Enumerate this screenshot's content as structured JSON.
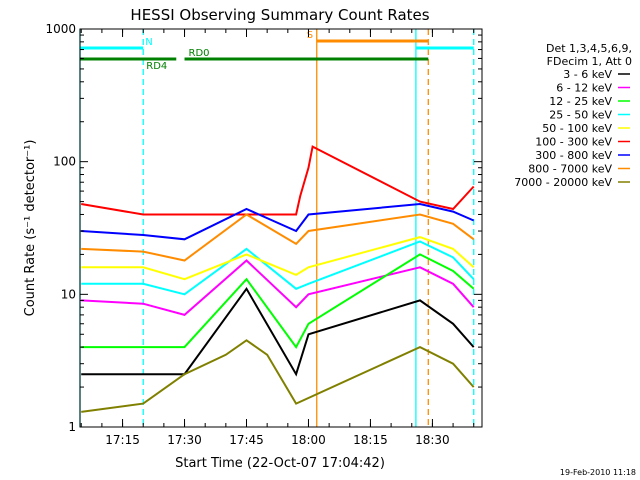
{
  "chart_data": {
    "type": "line",
    "title": "HESSI Observing Summary Count Rates",
    "xlabel": "Start Time (22-Oct-07 17:04:42)",
    "ylabel": "Count Rate (s⁻¹ detector⁻¹)",
    "yscale": "log",
    "xlim": [
      "17:04:42",
      "18:42:00"
    ],
    "ylim": [
      1,
      1000
    ],
    "x_ticks": [
      "17:15",
      "17:30",
      "17:45",
      "18:00",
      "18:15",
      "18:30"
    ],
    "y_ticks": [
      "1",
      "10",
      "100",
      "1000"
    ],
    "legend_header": [
      "Det 1,3,4,5,6,9,",
      "FDecim 1, Att 0"
    ],
    "legend_position": "right",
    "series": [
      {
        "name": "3 - 6 keV",
        "color": "#000000",
        "x": [
          "17:05",
          "17:20",
          "17:30",
          "17:45",
          "17:57",
          "18:00",
          "18:27",
          "18:35",
          "18:40"
        ],
        "values": [
          2.5,
          2.5,
          2.5,
          11,
          2.5,
          5,
          9,
          6,
          4
        ]
      },
      {
        "name": "6 - 12 keV",
        "color": "#ff00ff",
        "x": [
          "17:05",
          "17:20",
          "17:30",
          "17:45",
          "17:57",
          "18:00",
          "18:27",
          "18:35",
          "18:40"
        ],
        "values": [
          9,
          8.5,
          7,
          18,
          8,
          10,
          16,
          12,
          8
        ]
      },
      {
        "name": "12 - 25 keV",
        "color": "#00ff00",
        "x": [
          "17:05",
          "17:20",
          "17:30",
          "17:45",
          "17:57",
          "18:00",
          "18:27",
          "18:35",
          "18:40"
        ],
        "values": [
          4,
          4,
          4,
          13,
          4,
          6,
          20,
          15,
          11
        ]
      },
      {
        "name": "25 - 50 keV",
        "color": "#00ffff",
        "x": [
          "17:05",
          "17:20",
          "17:30",
          "17:45",
          "17:57",
          "18:00",
          "18:27",
          "18:35",
          "18:40"
        ],
        "values": [
          12,
          12,
          10,
          22,
          11,
          12,
          25,
          19,
          13
        ]
      },
      {
        "name": "50 - 100 keV",
        "color": "#ffff00",
        "x": [
          "17:05",
          "17:20",
          "17:30",
          "17:45",
          "17:57",
          "18:00",
          "18:27",
          "18:35",
          "18:40"
        ],
        "values": [
          16,
          16,
          13,
          20,
          14,
          16,
          27,
          22,
          16
        ]
      },
      {
        "name": "100 - 300 keV",
        "color": "#ff0000",
        "x": [
          "17:05",
          "17:20",
          "17:30",
          "17:45",
          "17:57",
          "17:58",
          "18:00",
          "18:01",
          "18:27",
          "18:35",
          "18:40"
        ],
        "values": [
          48,
          40,
          40,
          40,
          40,
          55,
          90,
          130,
          50,
          44,
          65
        ]
      },
      {
        "name": "300 - 800 keV",
        "color": "#0000ff",
        "x": [
          "17:05",
          "17:20",
          "17:30",
          "17:45",
          "17:57",
          "18:00",
          "18:27",
          "18:35",
          "18:40"
        ],
        "values": [
          30,
          28,
          26,
          44,
          30,
          40,
          48,
          42,
          36
        ]
      },
      {
        "name": "800 - 7000 keV",
        "color": "#ff8c00",
        "x": [
          "17:05",
          "17:20",
          "17:30",
          "17:45",
          "17:57",
          "18:00",
          "18:27",
          "18:35",
          "18:40"
        ],
        "values": [
          22,
          21,
          18,
          40,
          24,
          30,
          40,
          34,
          26
        ]
      },
      {
        "name": "7000 - 20000 keV",
        "color": "#808000",
        "x": [
          "17:05",
          "17:20",
          "17:30",
          "17:40",
          "17:45",
          "17:50",
          "17:57",
          "18:27",
          "18:35",
          "18:40"
        ],
        "values": [
          1.3,
          1.5,
          2.5,
          3.5,
          4.5,
          3.5,
          1.5,
          4,
          3,
          2
        ]
      }
    ],
    "annotations": [
      {
        "label": "N",
        "color": "#00ffff",
        "x_start": "17:04:42",
        "x_end": "17:20"
      },
      {
        "label": "",
        "color": "#00ffff",
        "x_start": "18:26",
        "x_end": "18:40"
      },
      {
        "label": "S",
        "color": "#ff8c00",
        "x_start": "18:02",
        "x_end": "18:29"
      },
      {
        "label": "RD4",
        "color": "#008000",
        "x_start": "17:04:42",
        "x_end": "17:28"
      },
      {
        "label": "RD0",
        "color": "#008000",
        "x_start": "17:30",
        "x_end": "18:29"
      }
    ],
    "vertical_lines": [
      {
        "x": "17:04:42",
        "color": "#00ffff",
        "style": "solid"
      },
      {
        "x": "17:20",
        "color": "#00ffff",
        "style": "dashed"
      },
      {
        "x": "18:02",
        "color": "#ff8c00",
        "style": "solid"
      },
      {
        "x": "18:26",
        "color": "#00ffff",
        "style": "solid"
      },
      {
        "x": "18:29",
        "color": "#ff8c00",
        "style": "dashed"
      },
      {
        "x": "18:40",
        "color": "#00ffff",
        "style": "dashed"
      }
    ],
    "grid": false
  },
  "footer": {
    "date": "19-Feb-2010 11:18"
  }
}
